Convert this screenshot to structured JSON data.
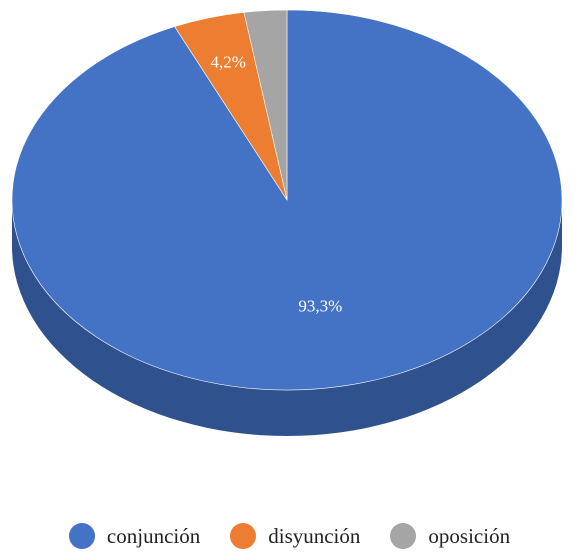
{
  "chart_data": {
    "type": "pie",
    "style": "3d",
    "categories": [
      "conjunción",
      "disyunción",
      "oposición"
    ],
    "values": [
      93.3,
      4.2,
      2.5
    ],
    "data_labels": [
      "93,3%",
      "4,2%",
      ""
    ],
    "colors": [
      "#4472C4",
      "#ED7D31",
      "#A5A5A5"
    ],
    "side_colors": [
      "#2F528F",
      "#AE5A21",
      "#7B7B7B"
    ],
    "legend_position": "bottom",
    "title": "",
    "legend": [
      "conjunción",
      "disyunción",
      "oposición"
    ]
  }
}
